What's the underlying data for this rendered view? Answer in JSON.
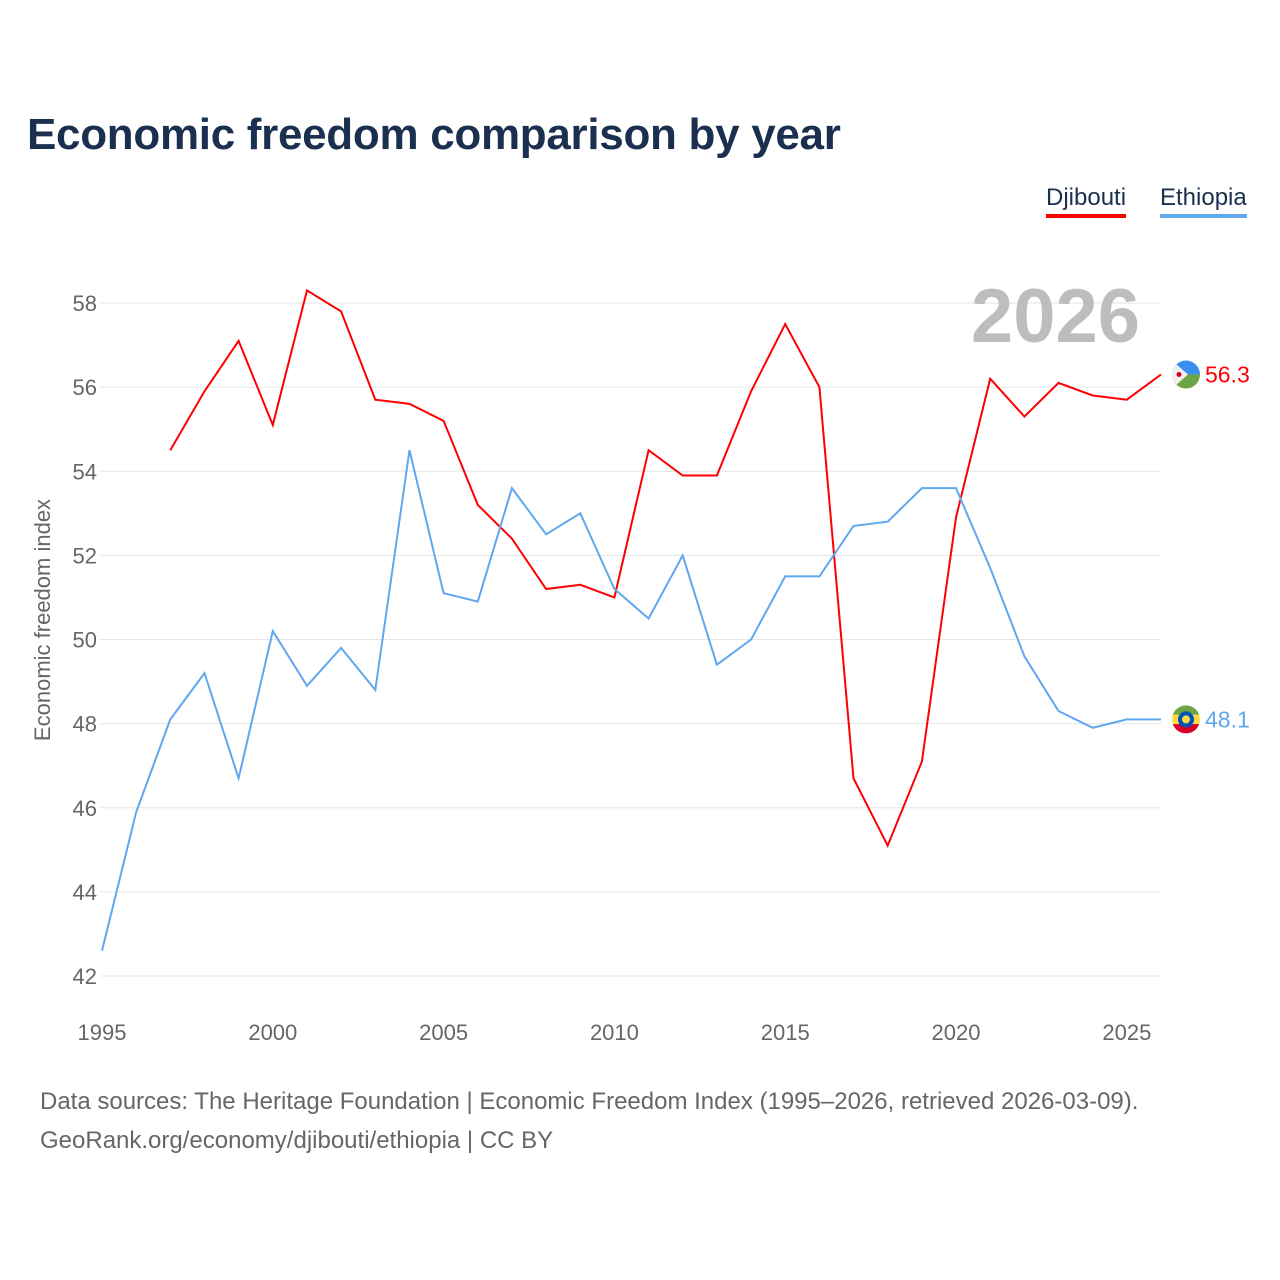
{
  "title": "Economic freedom comparison by year",
  "legend": [
    {
      "label": "Djibouti",
      "color": "#ff0000"
    },
    {
      "label": "Ethiopia",
      "color": "#5ea8ee"
    }
  ],
  "footer": {
    "sources": "Data sources: The Heritage Foundation | Economic Freedom Index (1995–2026, retrieved 2026-03-09).",
    "license": "GeoRank.org/economy/djibouti/ethiopia | CC BY"
  },
  "chart_data": {
    "type": "line",
    "title": "Economic freedom comparison by year",
    "xlabel": "",
    "ylabel": "Economic freedom index",
    "year_watermark": "2026",
    "xlim": [
      1995,
      2026
    ],
    "ylim": [
      42,
      58
    ],
    "xticks": [
      "1995",
      "2000",
      "2005",
      "2010",
      "2015",
      "2020",
      "2025"
    ],
    "yticks": [
      "42",
      "44",
      "46",
      "48",
      "50",
      "52",
      "54",
      "56",
      "58"
    ],
    "grid": true,
    "legend_position": "top-right",
    "x": [
      1995,
      1996,
      1997,
      1998,
      1999,
      2000,
      2001,
      2002,
      2003,
      2004,
      2005,
      2006,
      2007,
      2008,
      2009,
      2010,
      2011,
      2012,
      2013,
      2014,
      2015,
      2016,
      2017,
      2018,
      2019,
      2020,
      2021,
      2022,
      2023,
      2024,
      2025,
      2026
    ],
    "series": [
      {
        "name": "Djibouti",
        "color": "#ff0000",
        "end_label": "56.3",
        "flag": "djibouti",
        "values": [
          null,
          null,
          54.5,
          55.9,
          57.1,
          55.1,
          58.3,
          57.8,
          55.7,
          55.6,
          55.2,
          53.2,
          52.4,
          51.2,
          51.3,
          51.0,
          54.5,
          53.9,
          53.9,
          55.9,
          57.5,
          56.0,
          46.7,
          45.1,
          47.1,
          52.9,
          56.2,
          55.3,
          56.1,
          55.8,
          55.7,
          56.3
        ]
      },
      {
        "name": "Ethiopia",
        "color": "#5ea8ee",
        "end_label": "48.1",
        "flag": "ethiopia",
        "values": [
          42.6,
          45.9,
          48.1,
          49.2,
          46.7,
          50.2,
          48.9,
          49.8,
          48.8,
          54.5,
          51.1,
          50.9,
          53.6,
          52.5,
          53.0,
          51.2,
          50.5,
          52.0,
          49.4,
          50.0,
          51.5,
          51.5,
          52.7,
          52.8,
          53.6,
          53.6,
          51.7,
          49.6,
          48.3,
          47.9,
          48.1,
          48.1
        ]
      }
    ]
  }
}
